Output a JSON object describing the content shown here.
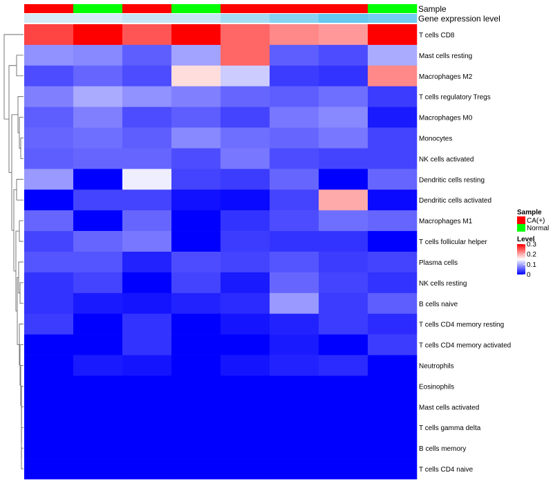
{
  "chart_data": {
    "type": "heatmap",
    "annotation_rows": [
      {
        "label": "Sample",
        "values": [
          "CA(+)",
          "Normal",
          "CA(+)",
          "Normal",
          "CA(+)",
          "CA(+)",
          "CA(+)",
          "Normal"
        ]
      },
      {
        "label": "Gene expression level",
        "values": [
          0.02,
          0.02,
          0.05,
          0.05,
          0.12,
          0.18,
          0.25,
          0.22
        ]
      }
    ],
    "rows": [
      "T cells CD8",
      "Mast cells resting",
      "Macrophages M2",
      "T cells regulatory  Tregs",
      "Macrophages M0",
      "Monocytes",
      "NK cells activated",
      "Dendritic cells resting",
      "Dendritic cells activated",
      "Macrophages M1",
      "T cells follicular helper",
      "Plasma cells",
      "NK cells resting",
      "B cells naive",
      "T cells CD4 memory resting",
      "T cells CD4 memory activated",
      "Neutrophils",
      "Eosinophils",
      "Mast cells activated",
      "T cells gamma delta",
      "B cells memory",
      "T cells CD4 naive"
    ],
    "values": [
      [
        0.26,
        0.3,
        0.25,
        0.3,
        0.24,
        0.22,
        0.21,
        0.3
      ],
      [
        0.085,
        0.08,
        0.055,
        0.095,
        0.24,
        0.055,
        0.045,
        0.1
      ],
      [
        0.045,
        0.06,
        0.045,
        0.17,
        0.12,
        0.035,
        0.03,
        0.22
      ],
      [
        0.075,
        0.1,
        0.085,
        0.075,
        0.06,
        0.055,
        0.065,
        0.035
      ],
      [
        0.055,
        0.075,
        0.045,
        0.055,
        0.04,
        0.07,
        0.08,
        0.015
      ],
      [
        0.06,
        0.065,
        0.055,
        0.08,
        0.065,
        0.06,
        0.07,
        0.04
      ],
      [
        0.055,
        0.06,
        0.06,
        0.045,
        0.07,
        0.045,
        0.04,
        0.04
      ],
      [
        0.09,
        0.0,
        0.14,
        0.04,
        0.035,
        0.06,
        0.0,
        0.06
      ],
      [
        0.0,
        0.04,
        0.04,
        0.01,
        0.005,
        0.04,
        0.2,
        0.005
      ],
      [
        0.06,
        0.0,
        0.06,
        0.0,
        0.03,
        0.045,
        0.065,
        0.06
      ],
      [
        0.04,
        0.06,
        0.07,
        0.0,
        0.035,
        0.03,
        0.03,
        0.0
      ],
      [
        0.05,
        0.05,
        0.02,
        0.045,
        0.04,
        0.05,
        0.035,
        0.04
      ],
      [
        0.03,
        0.04,
        0.0,
        0.04,
        0.015,
        0.06,
        0.04,
        0.03
      ],
      [
        0.03,
        0.015,
        0.012,
        0.02,
        0.025,
        0.09,
        0.035,
        0.055
      ],
      [
        0.035,
        0.0,
        0.03,
        0.0,
        0.012,
        0.02,
        0.035,
        0.025
      ],
      [
        0.0,
        0.0,
        0.03,
        0.0,
        0.0,
        0.015,
        0.0,
        0.035
      ],
      [
        0.0,
        0.015,
        0.012,
        0.0,
        0.012,
        0.02,
        0.025,
        0.0
      ],
      [
        0.0,
        0.0,
        0.0,
        0.0,
        0.0,
        0.0,
        0.0,
        0.0
      ],
      [
        0.0,
        0.0,
        0.0,
        0.0,
        0.0,
        0.0,
        0.0,
        0.0
      ],
      [
        0.0,
        0.0,
        0.0,
        0.0,
        0.0,
        0.0,
        0.0,
        0.0
      ],
      [
        0.0,
        0.0,
        0.0,
        0.0,
        0.0,
        0.0,
        0.0,
        0.0
      ],
      [
        0.0,
        0.0,
        0.0,
        0.0,
        0.0,
        0.0,
        0.0,
        0.0
      ]
    ],
    "color_scale": {
      "min": 0,
      "max": 0.3,
      "colors": [
        "#0000ff",
        "#ffffff",
        "#ff0000"
      ]
    },
    "dendrogram": "left",
    "legend": {
      "placement": "right",
      "sample_title": "Sample",
      "sample_items": [
        {
          "label": "CA(+)",
          "color": "#ff0000"
        },
        {
          "label": "Normal",
          "color": "#00ff00"
        }
      ],
      "level_title": "Level",
      "level_ticks": [
        "0.3",
        "0.2",
        "0.1",
        "0"
      ]
    },
    "title": "",
    "xlabel": "",
    "ylabel": ""
  }
}
